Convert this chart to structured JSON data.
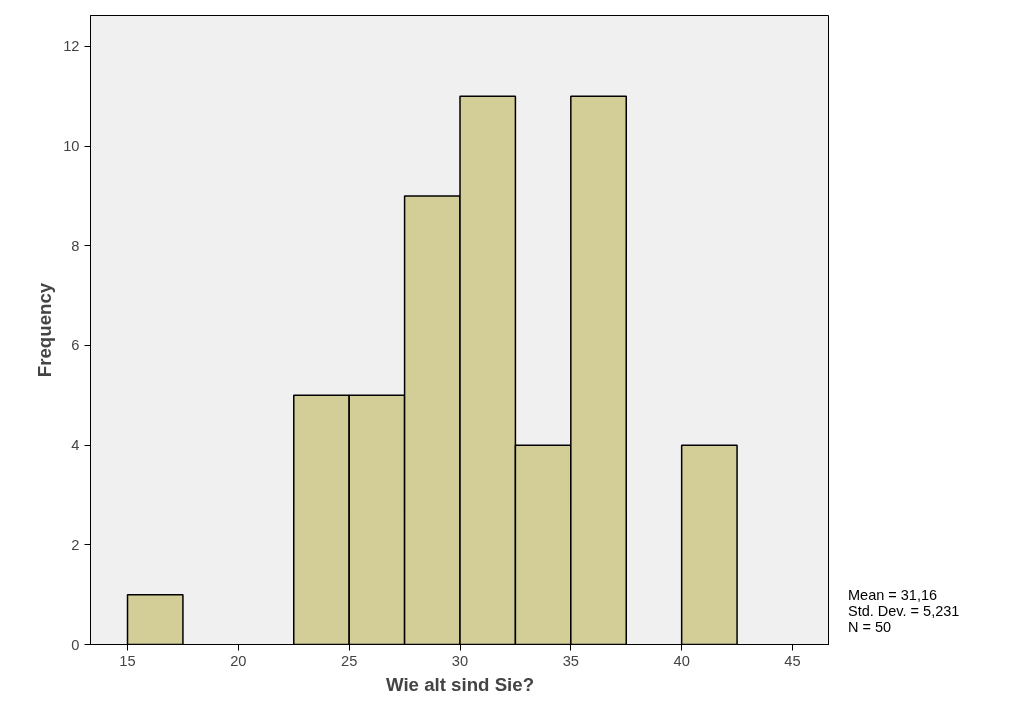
{
  "chart_data": {
    "type": "histogram",
    "xlabel": "Wie alt sind Sie?",
    "ylabel": "Frequency",
    "bins": [
      15,
      17.5,
      20,
      22.5,
      25,
      27.5,
      30,
      32.5,
      35,
      37.5,
      40,
      42.5
    ],
    "values": [
      1,
      0,
      0,
      5,
      5,
      9,
      11,
      4,
      11,
      0,
      4
    ],
    "color": "#d3ce97",
    "xlim": [
      13.33,
      46.67
    ],
    "ylim": [
      0,
      12.62
    ],
    "xticks": [
      15,
      20,
      25,
      30,
      35,
      40,
      45
    ],
    "yticks": [
      0,
      2,
      4,
      6,
      8,
      10,
      12
    ],
    "grid": false,
    "annotations": [
      "Mean = 31,16",
      "Std. Dev. = 5,231",
      "N = 50"
    ]
  }
}
